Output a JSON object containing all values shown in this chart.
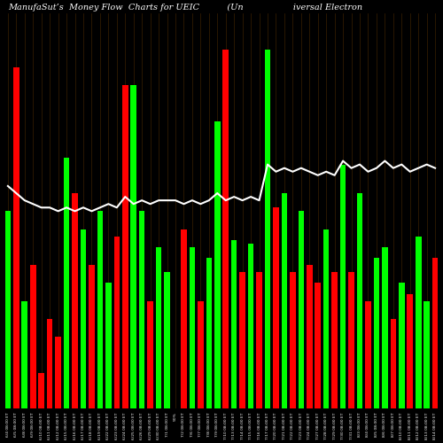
{
  "title": "ManufaSut’s  Money Flow  Charts for UEIC          (Un                  iversal Electron",
  "background_color": "#000000",
  "bar_width": 0.7,
  "categories": [
    "6/4 08:00 ET",
    "6/5 08:00 ET",
    "6/8 08:00 ET",
    "6/9 08:00 ET",
    "6/10 08:00 ET",
    "6/11 08:00 ET",
    "6/12 08:00 ET",
    "6/15 08:00 ET",
    "6/16 08:00 ET",
    "6/17 08:00 ET",
    "6/18 08:00 ET",
    "6/19 08:00 ET",
    "6/22 08:00 ET",
    "6/23 08:00 ET",
    "6/24 08:00 ET",
    "6/25 08:00 ET",
    "6/26 08:00 ET",
    "6/29 08:00 ET",
    "6/30 08:00 ET",
    "7/1 08:00 ET",
    "50%",
    "7/2 08:00 ET",
    "7/6 08:00 ET",
    "7/7 08:00 ET",
    "7/8 08:00 ET",
    "7/9 08:00 ET",
    "7/10 08:00 ET",
    "7/13 08:00 ET",
    "7/14 08:00 ET",
    "7/15 08:00 ET",
    "7/16 08:00 ET",
    "7/17 08:00 ET",
    "7/20 08:00 ET",
    "7/21 08:00 ET",
    "7/22 08:00 ET",
    "7/23 08:00 ET",
    "7/24 08:00 ET",
    "7/27 08:00 ET",
    "7/28 08:00 ET",
    "7/29 08:00 ET",
    "7/30 08:00 ET",
    "7/31 08:00 ET",
    "8/3 08:00 ET",
    "8/4 08:00 ET",
    "8/5 08:00 ET",
    "8/6 08:00 ET",
    "8/7 08:00 ET",
    "8/10 08:00 ET",
    "8/11 08:00 ET",
    "8/12 08:00 ET",
    "8/13 08:00 ET",
    "8/14 08:00 ET"
  ],
  "bar_heights": [
    55,
    95,
    30,
    40,
    10,
    25,
    20,
    70,
    60,
    50,
    40,
    55,
    35,
    48,
    90,
    90,
    55,
    30,
    45,
    38,
    0,
    50,
    45,
    30,
    42,
    80,
    100,
    47,
    38,
    46,
    38,
    100,
    56,
    60,
    38,
    55,
    40,
    35,
    50,
    38,
    68,
    38,
    60,
    30,
    42,
    45,
    25,
    35,
    32,
    48,
    30,
    42
  ],
  "colors": [
    "G",
    "R",
    "G",
    "R",
    "R",
    "R",
    "R",
    "G",
    "R",
    "G",
    "R",
    "G",
    "G",
    "R",
    "R",
    "G",
    "G",
    "R",
    "G",
    "G",
    "G",
    "R",
    "G",
    "R",
    "G",
    "G",
    "R",
    "G",
    "R",
    "G",
    "R",
    "G",
    "R",
    "G",
    "R",
    "G",
    "R",
    "R",
    "G",
    "R",
    "G",
    "R",
    "G",
    "R",
    "G",
    "G",
    "R",
    "G",
    "R",
    "G",
    "G",
    "R"
  ],
  "ma_values": [
    62,
    60,
    58,
    57,
    56,
    56,
    55,
    56,
    55,
    56,
    55,
    56,
    57,
    56,
    59,
    57,
    58,
    57,
    58,
    58,
    58,
    57,
    58,
    57,
    58,
    60,
    58,
    59,
    58,
    59,
    58,
    68,
    66,
    67,
    66,
    67,
    66,
    65,
    66,
    65,
    69,
    67,
    68,
    66,
    67,
    69,
    67,
    68,
    66,
    67,
    68,
    67
  ],
  "green_color": "#00ff00",
  "red_color": "#ff0000",
  "line_color": "#ffffff",
  "title_color": "#ffffff",
  "title_fontsize": 7,
  "grid_color": "#3a2000",
  "ylim": [
    0,
    110
  ]
}
